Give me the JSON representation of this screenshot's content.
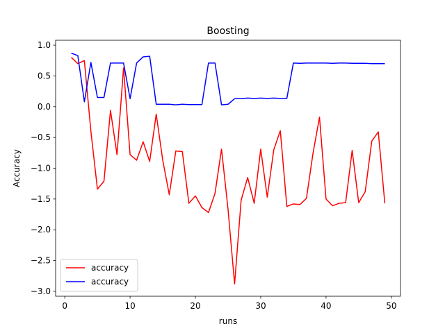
{
  "chart_data": {
    "type": "line",
    "title": "Boosting",
    "xlabel": "runs",
    "ylabel": "Accuracy",
    "xlim": [
      -1.4,
      51.4
    ],
    "ylim": [
      -3.08,
      1.08
    ],
    "xticks": [
      0,
      10,
      20,
      30,
      40,
      50
    ],
    "yticks": [
      1.0,
      0.5,
      0.0,
      -0.5,
      -1.0,
      -1.5,
      -2.0,
      -2.5,
      -3.0
    ],
    "xtick_labels": [
      "0",
      "10",
      "20",
      "30",
      "40",
      "50"
    ],
    "ytick_labels": [
      "1.0",
      "0.5",
      "0.0",
      "−0.5",
      "−1.0",
      "−1.5",
      "−2.0",
      "−2.5",
      "−3.0"
    ],
    "grid": false,
    "legend_position": "lower-left",
    "x": [
      1,
      2,
      3,
      4,
      5,
      6,
      7,
      8,
      9,
      10,
      11,
      12,
      13,
      14,
      15,
      16,
      17,
      18,
      19,
      20,
      21,
      22,
      23,
      24,
      25,
      26,
      27,
      28,
      29,
      30,
      31,
      32,
      33,
      34,
      35,
      36,
      37,
      38,
      39,
      40,
      41,
      42,
      43,
      44,
      45,
      46,
      47,
      48,
      49
    ],
    "series": [
      {
        "name": "accuracy",
        "color": "#ff0000",
        "values": [
          0.8,
          0.7,
          0.75,
          -0.4,
          -1.34,
          -1.21,
          -0.06,
          -0.78,
          0.63,
          -0.78,
          -0.87,
          -0.57,
          -0.89,
          -0.12,
          -0.87,
          -1.43,
          -0.72,
          -0.73,
          -1.57,
          -1.45,
          -1.64,
          -1.72,
          -1.41,
          -0.69,
          -1.67,
          -2.88,
          -1.52,
          -1.15,
          -1.57,
          -0.69,
          -1.47,
          -0.7,
          -0.39,
          -1.62,
          -1.58,
          -1.59,
          -1.49,
          -0.76,
          -0.17,
          -1.5,
          -1.61,
          -1.57,
          -1.56,
          -0.71,
          -1.56,
          -1.38,
          -0.56,
          -0.41,
          -1.57
        ]
      },
      {
        "name": "accuracy",
        "color": "#0000ff",
        "values": [
          0.87,
          0.83,
          0.08,
          0.72,
          0.15,
          0.15,
          0.71,
          0.71,
          0.71,
          0.13,
          0.71,
          0.81,
          0.82,
          0.04,
          0.04,
          0.04,
          0.03,
          0.04,
          0.035,
          0.035,
          0.035,
          0.71,
          0.71,
          0.03,
          0.04,
          0.13,
          0.13,
          0.14,
          0.135,
          0.14,
          0.135,
          0.14,
          0.135,
          0.135,
          0.71,
          0.705,
          0.71,
          0.71,
          0.71,
          0.71,
          0.705,
          0.71,
          0.71,
          0.705,
          0.705,
          0.705,
          0.7,
          0.7,
          0.7
        ]
      }
    ]
  }
}
